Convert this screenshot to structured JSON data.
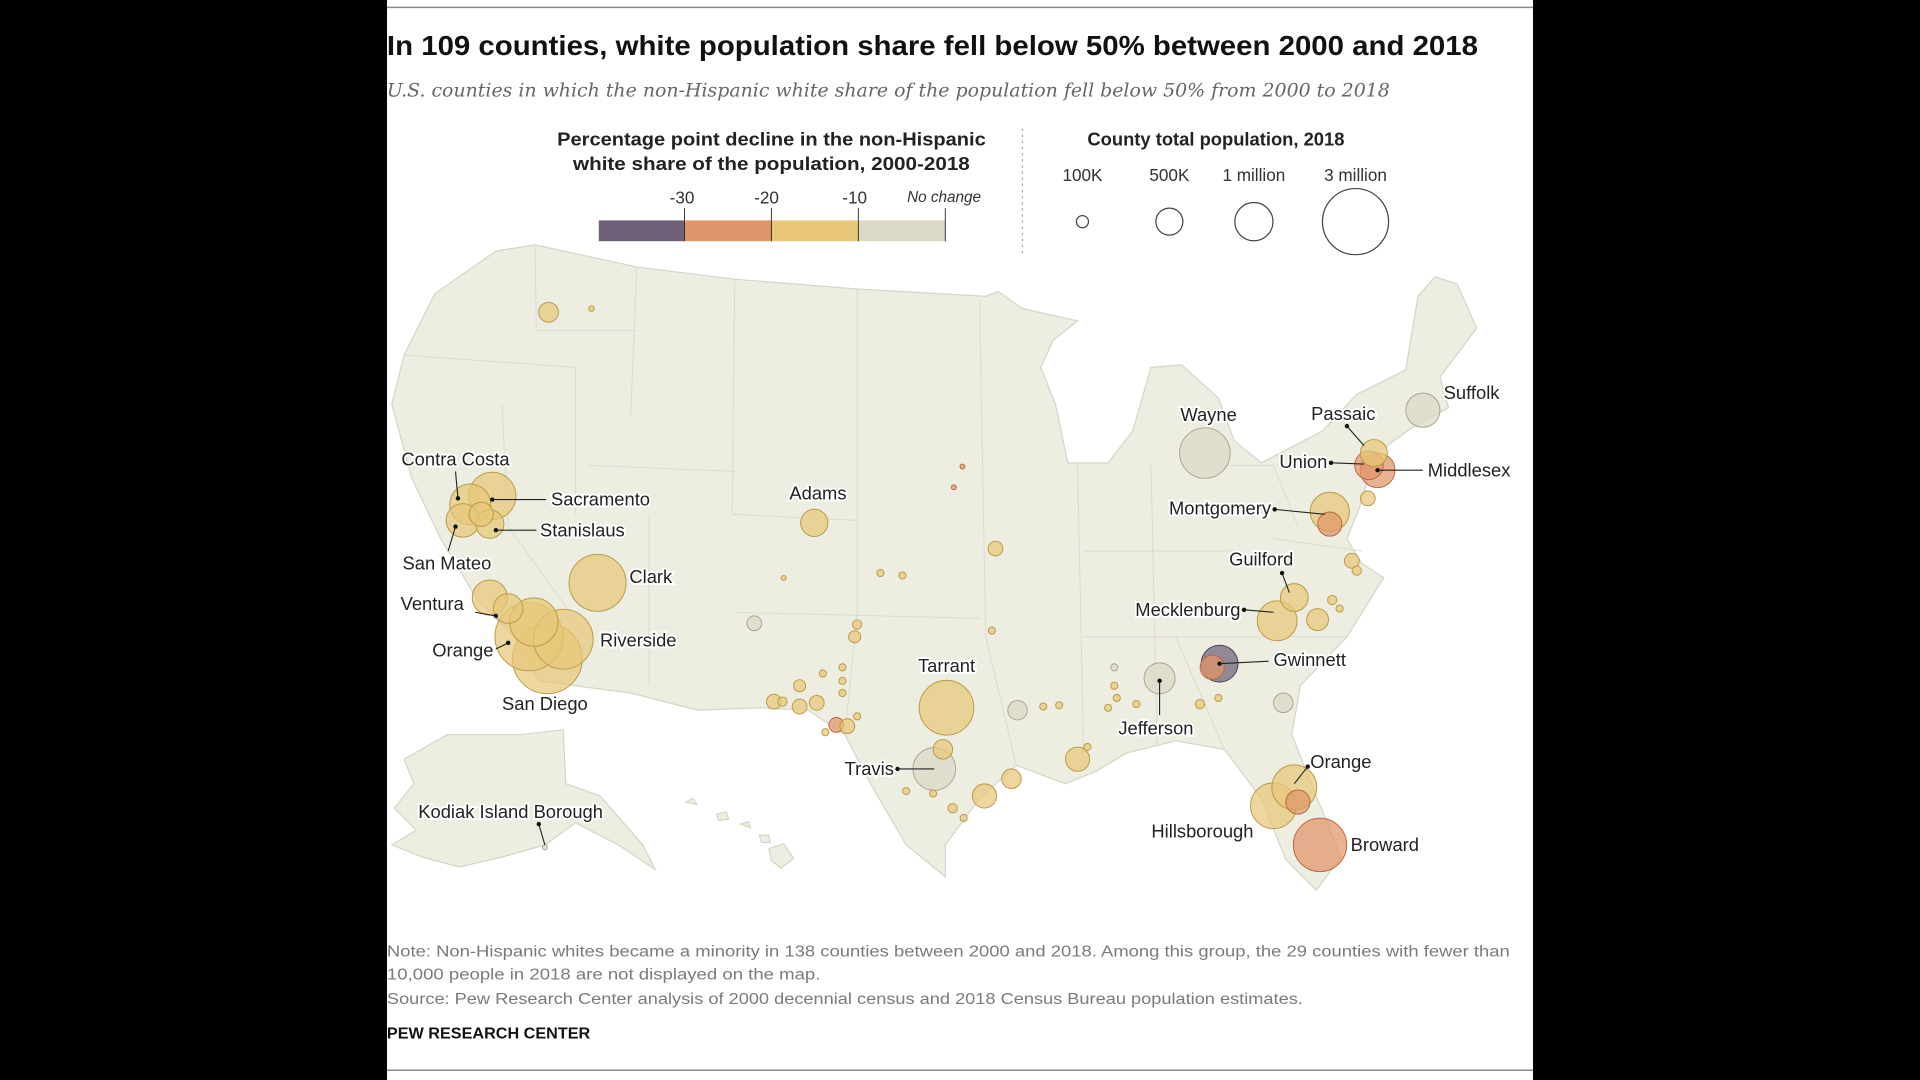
{
  "title": "In 109 counties, white population share fell below 50% between 2000 and 2018",
  "subtitle": "U.S. counties in which the non-Hispanic white share of the population fell below 50% from 2000 to 2018",
  "legend_color": {
    "title_line1": "Percentage point decline in the non-Hispanic",
    "title_line2": "white share of the population, 2000-2018",
    "ticks": [
      "-30",
      "-20",
      "-10",
      "No change"
    ],
    "colors": {
      "30+": "#6f6178",
      "20-30": "#e0956a",
      "10-20": "#e8c878",
      "0-10": "#dcd8c6"
    }
  },
  "legend_size": {
    "title": "County total population, 2018",
    "labels": [
      "100K",
      "500K",
      "1 million",
      "3 million"
    ],
    "values_thousands": [
      100,
      500,
      1000,
      3000
    ]
  },
  "chart_data": {
    "type": "proportional-symbol-map",
    "region": "United States counties",
    "size_variable": "County total population, 2018",
    "color_variable": "Percentage point decline in non-Hispanic white share, 2000-2018",
    "counties": [
      {
        "name": "Contra Costa",
        "decline": "10-20",
        "pop_k": 1150
      },
      {
        "name": "Sacramento",
        "decline": "10-20",
        "pop_k": 1540
      },
      {
        "name": "Stanislaus",
        "decline": "10-20",
        "pop_k": 550
      },
      {
        "name": "San Mateo",
        "decline": "10-20",
        "pop_k": 770
      },
      {
        "name": "Clark",
        "decline": "10-20",
        "pop_k": 2230
      },
      {
        "name": "Adams",
        "decline": "10-20",
        "pop_k": 510
      },
      {
        "name": "Ventura",
        "decline": "10-20",
        "pop_k": 850
      },
      {
        "name": "Orange",
        "decline": "10-20",
        "pop_k": 3180
      },
      {
        "name": "Riverside",
        "decline": "10-20",
        "pop_k": 2450
      },
      {
        "name": "San Diego",
        "decline": "10-20",
        "pop_k": 3340
      },
      {
        "name": "Tarrant",
        "decline": "10-20",
        "pop_k": 2050
      },
      {
        "name": "Travis",
        "decline": "0-10",
        "pop_k": 1250
      },
      {
        "name": "Wayne",
        "decline": "0-10",
        "pop_k": 1750
      },
      {
        "name": "Passaic",
        "decline": "10-20",
        "pop_k": 500
      },
      {
        "name": "Union",
        "decline": "20-30",
        "pop_k": 560
      },
      {
        "name": "Middlesex",
        "decline": "20-30",
        "pop_k": 830
      },
      {
        "name": "Montgomery",
        "decline": "10-20",
        "pop_k": 1050
      },
      {
        "name": "Guilford",
        "decline": "10-20",
        "pop_k": 530
      },
      {
        "name": "Mecklenburg",
        "decline": "10-20",
        "pop_k": 1090
      },
      {
        "name": "Gwinnett",
        "decline": "30+",
        "pop_k": 930
      },
      {
        "name": "Jefferson",
        "decline": "0-10",
        "pop_k": 660
      },
      {
        "name": "Orange",
        "decline": "10-20",
        "pop_k": 1380
      },
      {
        "name": "Hillsborough",
        "decline": "10-20",
        "pop_k": 1440
      },
      {
        "name": "Broward",
        "decline": "20-30",
        "pop_k": 1950
      },
      {
        "name": "Suffolk",
        "decline": "0-10",
        "pop_k": 800
      },
      {
        "name": "Kodiak Island Borough",
        "decline": "0-10",
        "pop_k": 13
      },
      {
        "name": "",
        "decline": "10-20",
        "pop_k": 270
      },
      {
        "name": "",
        "decline": "10-20",
        "pop_k": 20
      },
      {
        "name": "",
        "decline": "10-20",
        "pop_k": 600
      },
      {
        "name": "",
        "decline": "10-20",
        "pop_k": 1600
      },
      {
        "name": "",
        "decline": "10-20",
        "pop_k": 400
      },
      {
        "name": "",
        "decline": "20-30",
        "pop_k": 400
      },
      {
        "name": "",
        "decline": "20-30",
        "pop_k": 15
      },
      {
        "name": "",
        "decline": "20-30",
        "pop_k": 15
      },
      {
        "name": "",
        "decline": "10-20",
        "pop_k": 150
      },
      {
        "name": "",
        "decline": "10-20",
        "pop_k": 35
      },
      {
        "name": "",
        "decline": "10-20",
        "pop_k": 35
      },
      {
        "name": "",
        "decline": "10-20",
        "pop_k": 15
      },
      {
        "name": "",
        "decline": "0-10",
        "pop_k": 150
      },
      {
        "name": "",
        "decline": "10-20",
        "pop_k": 100
      },
      {
        "name": "",
        "decline": "10-20",
        "pop_k": 60
      },
      {
        "name": "",
        "decline": "10-20",
        "pop_k": 100
      },
      {
        "name": "",
        "decline": "10-20",
        "pop_k": 60
      },
      {
        "name": "",
        "decline": "10-20",
        "pop_k": 150
      },
      {
        "name": "",
        "decline": "10-20",
        "pop_k": 150
      },
      {
        "name": "",
        "decline": "10-20",
        "pop_k": 150
      },
      {
        "name": "",
        "decline": "10-20",
        "pop_k": 35
      },
      {
        "name": "",
        "decline": "10-20",
        "pop_k": 35
      },
      {
        "name": "",
        "decline": "10-20",
        "pop_k": 35
      },
      {
        "name": "",
        "decline": "10-20",
        "pop_k": 35
      },
      {
        "name": "",
        "decline": "10-20",
        "pop_k": 35
      },
      {
        "name": "",
        "decline": "20-30",
        "pop_k": 150
      },
      {
        "name": "",
        "decline": "10-20",
        "pop_k": 150
      },
      {
        "name": "",
        "decline": "10-20",
        "pop_k": 35
      },
      {
        "name": "",
        "decline": "10-20",
        "pop_k": 35
      },
      {
        "name": "",
        "decline": "10-20",
        "pop_k": 260
      },
      {
        "name": "",
        "decline": "0-10",
        "pop_k": 260
      },
      {
        "name": "",
        "decline": "10-20",
        "pop_k": 35
      },
      {
        "name": "",
        "decline": "10-20",
        "pop_k": 35
      },
      {
        "name": "",
        "decline": "10-20",
        "pop_k": 400
      },
      {
        "name": "",
        "decline": "10-20",
        "pop_k": 35
      },
      {
        "name": "",
        "decline": "0-10",
        "pop_k": 35
      },
      {
        "name": "",
        "decline": "10-20",
        "pop_k": 35
      },
      {
        "name": "",
        "decline": "10-20",
        "pop_k": 35
      },
      {
        "name": "",
        "decline": "10-20",
        "pop_k": 35
      },
      {
        "name": "",
        "decline": "10-20",
        "pop_k": 35
      },
      {
        "name": "",
        "decline": "10-20",
        "pop_k": 60
      },
      {
        "name": "",
        "decline": "10-20",
        "pop_k": 35
      },
      {
        "name": "",
        "decline": "0-10",
        "pop_k": 260
      },
      {
        "name": "",
        "decline": "10-20",
        "pop_k": 330
      },
      {
        "name": "",
        "decline": "10-20",
        "pop_k": 60
      },
      {
        "name": "",
        "decline": "10-20",
        "pop_k": 35
      },
      {
        "name": "",
        "decline": "10-20",
        "pop_k": 150
      },
      {
        "name": "",
        "decline": "10-20",
        "pop_k": 60
      },
      {
        "name": "",
        "decline": "10-20",
        "pop_k": 150
      },
      {
        "name": "",
        "decline": "10-20",
        "pop_k": 260
      },
      {
        "name": "",
        "decline": "10-20",
        "pop_k": 400
      },
      {
        "name": "",
        "decline": "10-20",
        "pop_k": 60
      },
      {
        "name": "",
        "decline": "10-20",
        "pop_k": 35
      },
      {
        "name": "",
        "decline": "10-20",
        "pop_k": 35
      },
      {
        "name": "",
        "decline": "10-20",
        "pop_k": 35
      },
      {
        "name": "",
        "decline": "20-30",
        "pop_k": 400
      },
      {
        "name": "",
        "decline": "20-30",
        "pop_k": 400
      }
    ]
  },
  "footer": {
    "note_line1": "Note: Non-Hispanic whites became a minority in 138 counties between 2000 and 2018. Among this group, the 29 counties with fewer than",
    "note_line2": "10,000 people in 2018 are not displayed on the map.",
    "source": "Source: Pew Research Center analysis of 2000 decennial census and 2018 Census Bureau population estimates.",
    "brand": "PEW RESEARCH CENTER"
  }
}
